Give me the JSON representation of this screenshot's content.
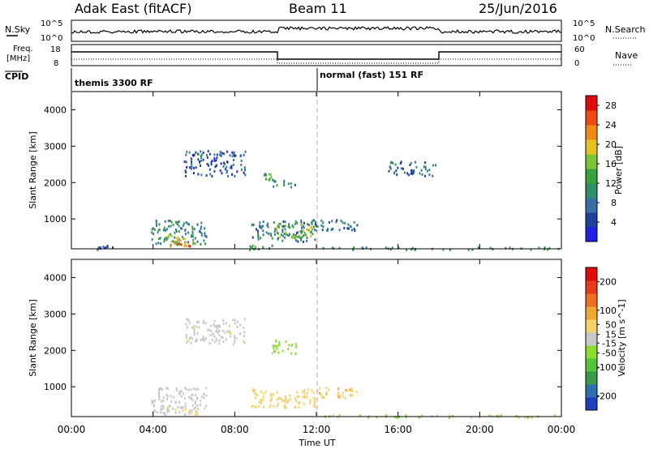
{
  "header": {
    "title_left": "Adak East (fitACF)",
    "title_center": "Beam 11",
    "title_right": "25/Jun/2016"
  },
  "status_panels": {
    "nsky_label": "N.Sky",
    "nsearch_label": "N.Search",
    "nsky_ticks": [
      "10^5",
      "10^0"
    ],
    "nsearch_ticks": [
      "10^5",
      "10^0"
    ],
    "freq_label_1": "Freq.",
    "freq_label_2": "[MHz]",
    "freq_ticks": [
      "18",
      "8"
    ],
    "nave_label": "Nave",
    "nave_ticks": [
      "60",
      "0"
    ],
    "cpid_label": "CPID",
    "cpid_segments": [
      "themis 3300 RF",
      "normal (fast) 151 RF"
    ]
  },
  "chart_data": [
    {
      "type": "heatmap",
      "panel": "power",
      "ylabel": "Slant Range [km]",
      "xlabel": "",
      "ylim": [
        180,
        4500
      ],
      "xlim": [
        "00:00",
        "24:00"
      ],
      "yticks": [
        1000,
        2000,
        3000,
        4000
      ],
      "colorbar": {
        "label": "Power [dB]",
        "ticks": [
          4,
          8,
          12,
          16,
          20,
          24,
          28
        ],
        "range": [
          0,
          30
        ],
        "colors": [
          "#1f1fe6",
          "#1e3f9a",
          "#3a6ea8",
          "#2f8f6a",
          "#3aa23a",
          "#7dc43a",
          "#e6c21e",
          "#f08a14",
          "#ee4a12",
          "#e00c0c"
        ]
      },
      "regions": [
        {
          "t_start": 1.2,
          "t_end": 2.0,
          "r_start": 180,
          "r_end": 300,
          "value": 6
        },
        {
          "t_start": 3.9,
          "t_end": 6.6,
          "r_start": 300,
          "r_end": 1000,
          "value": 10
        },
        {
          "t_start": 4.5,
          "t_end": 6.0,
          "r_start": 300,
          "r_end": 600,
          "value": 18
        },
        {
          "t_start": 4.8,
          "t_end": 5.8,
          "r_start": 250,
          "r_end": 400,
          "value": 24
        },
        {
          "t_start": 8.7,
          "t_end": 9.8,
          "r_start": 180,
          "r_end": 300,
          "value": 12
        },
        {
          "t_start": 8.8,
          "t_end": 12.0,
          "r_start": 400,
          "r_end": 1000,
          "value": 9
        },
        {
          "t_start": 10.0,
          "t_end": 11.8,
          "r_start": 500,
          "r_end": 900,
          "value": 16
        },
        {
          "t_start": 12.0,
          "t_end": 14.0,
          "r_start": 700,
          "r_end": 1000,
          "value": 8
        },
        {
          "t_start": 9.4,
          "t_end": 9.9,
          "r_start": 2100,
          "r_end": 2300,
          "value": 14
        },
        {
          "t_start": 9.8,
          "t_end": 11.0,
          "r_start": 1900,
          "r_end": 2100,
          "value": 9
        },
        {
          "t_start": 5.5,
          "t_end": 8.5,
          "r_start": 2200,
          "r_end": 2900,
          "value": 6
        },
        {
          "t_start": 15.5,
          "t_end": 17.8,
          "r_start": 2200,
          "r_end": 2600,
          "value": 7
        },
        {
          "t_start": 12.3,
          "t_end": 24.0,
          "r_start": 180,
          "r_end": 250,
          "value": 10
        }
      ]
    },
    {
      "type": "heatmap",
      "panel": "velocity",
      "ylabel": "Slant Range [km]",
      "xlabel": "Time UT",
      "ylim": [
        180,
        4500
      ],
      "xlim": [
        "00:00",
        "24:00"
      ],
      "xticks": [
        "00:00",
        "04:00",
        "08:00",
        "12:00",
        "16:00",
        "20:00",
        "00:00"
      ],
      "yticks": [
        1000,
        2000,
        3000,
        4000
      ],
      "colorbar": {
        "label": "Velocity [m s^-1]",
        "ticks": [
          200,
          100,
          50,
          15,
          -15,
          -50,
          -100,
          -200
        ],
        "range": [
          -250,
          250
        ],
        "colors": [
          "#1f3fbf",
          "#2f6fb0",
          "#3a9a4a",
          "#55c43a",
          "#8ade2e",
          "#c8c8c8",
          "#f2d36a",
          "#f0a830",
          "#ee7020",
          "#e63a1a",
          "#e00c0c"
        ]
      },
      "regions": [
        {
          "t_start": 3.9,
          "t_end": 6.6,
          "r_start": 300,
          "r_end": 1000,
          "value": 0
        },
        {
          "t_start": 4.5,
          "t_end": 6.2,
          "r_start": 250,
          "r_end": 500,
          "value": 30
        },
        {
          "t_start": 8.8,
          "t_end": 12.0,
          "r_start": 450,
          "r_end": 1000,
          "value": 40
        },
        {
          "t_start": 12.0,
          "t_end": 14.0,
          "r_start": 700,
          "r_end": 1000,
          "value": 60
        },
        {
          "t_start": 9.8,
          "t_end": 11.0,
          "r_start": 1900,
          "r_end": 2300,
          "value": -40
        },
        {
          "t_start": 12.3,
          "t_end": 24.0,
          "r_start": 180,
          "r_end": 250,
          "value": -30
        },
        {
          "t_start": 5.5,
          "t_end": 8.5,
          "r_start": 2200,
          "r_end": 2900,
          "value": 5
        }
      ]
    }
  ]
}
